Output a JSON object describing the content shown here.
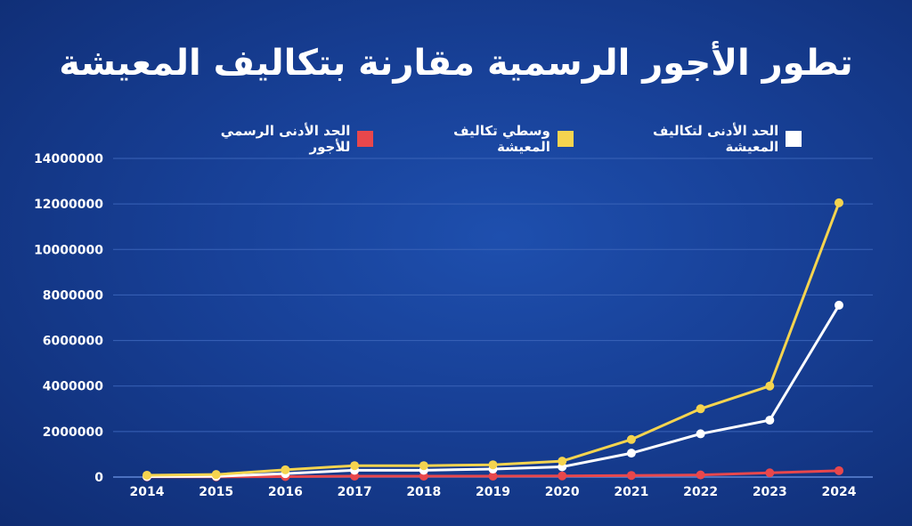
{
  "chart_data": {
    "type": "line",
    "title": "تطور الأجور الرسمية مقارنة بتكاليف المعيشة",
    "xlabel": "",
    "ylabel": "",
    "x": [
      "2014",
      "2015",
      "2016",
      "2017",
      "2018",
      "2019",
      "2020",
      "2021",
      "2022",
      "2023",
      "2024"
    ],
    "ylim": [
      0,
      14000000
    ],
    "yticks": [
      0,
      2000000,
      4000000,
      6000000,
      8000000,
      10000000,
      12000000,
      14000000
    ],
    "grid": true,
    "legend_position": "top",
    "series": [
      {
        "name": "الحد الأدنى لتكاليف المعيشة",
        "color": "#ffffff",
        "values": [
          20000,
          30000,
          150000,
          300000,
          300000,
          350000,
          450000,
          1050000,
          1900000,
          2500000,
          7550000
        ]
      },
      {
        "name": "وسطي تكاليف المعيشة",
        "color": "#f5d44f",
        "values": [
          80000,
          110000,
          320000,
          500000,
          500000,
          540000,
          700000,
          1650000,
          3000000,
          4000000,
          12050000
        ]
      },
      {
        "name": "الحد الأدنى الرسمي للأجور",
        "color": "#e8474c",
        "values": [
          10000,
          10000,
          20000,
          40000,
          40000,
          40000,
          50000,
          70000,
          92000,
          185000,
          280000
        ]
      }
    ]
  }
}
